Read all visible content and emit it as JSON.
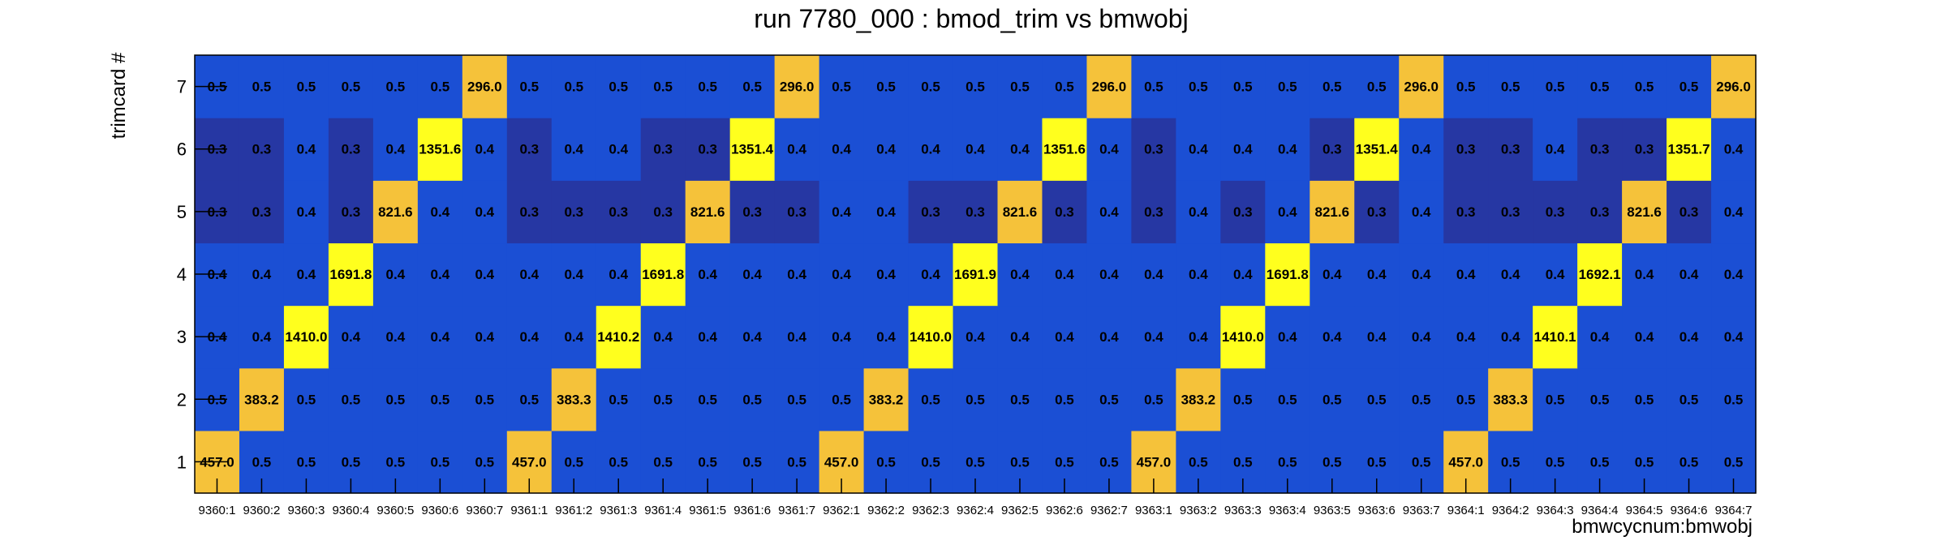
{
  "chart_data": {
    "type": "heatmap",
    "title": "run 7780_000 : bmod_trim vs bmwobj",
    "xlabel": "bmwcycnum:bmwobj",
    "ylabel": "trimcard #",
    "x_categories": [
      "9360:1",
      "9360:2",
      "9360:3",
      "9360:4",
      "9360:5",
      "9360:6",
      "9360:7",
      "9361:1",
      "9361:2",
      "9361:3",
      "9361:4",
      "9361:5",
      "9361:6",
      "9361:7",
      "9362:1",
      "9362:2",
      "9362:3",
      "9362:4",
      "9362:5",
      "9362:6",
      "9362:7",
      "9363:1",
      "9363:2",
      "9363:3",
      "9363:4",
      "9363:5",
      "9363:6",
      "9363:7",
      "9364:1",
      "9364:2",
      "9364:3",
      "9364:4",
      "9364:5",
      "9364:6",
      "9364:7"
    ],
    "y_categories": [
      "1",
      "2",
      "3",
      "4",
      "5",
      "6",
      "7"
    ],
    "rows": {
      "1": [
        "457.0",
        "0.5",
        "0.5",
        "0.5",
        "0.5",
        "0.5",
        "0.5",
        "457.0",
        "0.5",
        "0.5",
        "0.5",
        "0.5",
        "0.5",
        "0.5",
        "457.0",
        "0.5",
        "0.5",
        "0.5",
        "0.5",
        "0.5",
        "0.5",
        "457.0",
        "0.5",
        "0.5",
        "0.5",
        "0.5",
        "0.5",
        "0.5",
        "457.0",
        "0.5",
        "0.5",
        "0.5",
        "0.5",
        "0.5",
        "0.5"
      ],
      "2": [
        "0.5",
        "383.2",
        "0.5",
        "0.5",
        "0.5",
        "0.5",
        "0.5",
        "0.5",
        "383.3",
        "0.5",
        "0.5",
        "0.5",
        "0.5",
        "0.5",
        "0.5",
        "383.2",
        "0.5",
        "0.5",
        "0.5",
        "0.5",
        "0.5",
        "0.5",
        "383.2",
        "0.5",
        "0.5",
        "0.5",
        "0.5",
        "0.5",
        "0.5",
        "383.3",
        "0.5",
        "0.5",
        "0.5",
        "0.5",
        "0.5"
      ],
      "3": [
        "0.4",
        "0.4",
        "1410.0",
        "0.4",
        "0.4",
        "0.4",
        "0.4",
        "0.4",
        "0.4",
        "1410.2",
        "0.4",
        "0.4",
        "0.4",
        "0.4",
        "0.4",
        "0.4",
        "1410.0",
        "0.4",
        "0.4",
        "0.4",
        "0.4",
        "0.4",
        "0.4",
        "1410.0",
        "0.4",
        "0.4",
        "0.4",
        "0.4",
        "0.4",
        "0.4",
        "1410.1",
        "0.4",
        "0.4",
        "0.4",
        "0.4"
      ],
      "4": [
        "0.4",
        "0.4",
        "0.4",
        "1691.8",
        "0.4",
        "0.4",
        "0.4",
        "0.4",
        "0.4",
        "0.4",
        "1691.8",
        "0.4",
        "0.4",
        "0.4",
        "0.4",
        "0.4",
        "0.4",
        "1691.9",
        "0.4",
        "0.4",
        "0.4",
        "0.4",
        "0.4",
        "0.4",
        "1691.8",
        "0.4",
        "0.4",
        "0.4",
        "0.4",
        "0.4",
        "0.4",
        "1692.1",
        "0.4",
        "0.4",
        "0.4"
      ],
      "5": [
        "0.3",
        "0.3",
        "0.4",
        "0.3",
        "821.6",
        "0.4",
        "0.4",
        "0.3",
        "0.3",
        "0.3",
        "0.3",
        "821.6",
        "0.3",
        "0.3",
        "0.4",
        "0.4",
        "0.3",
        "0.3",
        "821.6",
        "0.3",
        "0.4",
        "0.3",
        "0.4",
        "0.3",
        "0.4",
        "821.6",
        "0.3",
        "0.4",
        "0.3",
        "0.3",
        "0.3",
        "0.3",
        "821.6",
        "0.3",
        "0.4"
      ],
      "6": [
        "0.3",
        "0.3",
        "0.4",
        "0.3",
        "0.4",
        "1351.6",
        "0.4",
        "0.3",
        "0.4",
        "0.4",
        "0.3",
        "0.3",
        "1351.4",
        "0.4",
        "0.4",
        "0.4",
        "0.4",
        "0.4",
        "0.4",
        "1351.6",
        "0.4",
        "0.3",
        "0.4",
        "0.4",
        "0.4",
        "0.3",
        "1351.4",
        "0.4",
        "0.3",
        "0.3",
        "0.4",
        "0.3",
        "0.3",
        "1351.7",
        "0.4"
      ],
      "7": [
        "0.5",
        "0.5",
        "0.5",
        "0.5",
        "0.5",
        "0.5",
        "296.0",
        "0.5",
        "0.5",
        "0.5",
        "0.5",
        "0.5",
        "0.5",
        "296.0",
        "0.5",
        "0.5",
        "0.5",
        "0.5",
        "0.5",
        "0.5",
        "296.0",
        "0.5",
        "0.5",
        "0.5",
        "0.5",
        "0.5",
        "0.5",
        "296.0",
        "0.5",
        "0.5",
        "0.5",
        "0.5",
        "0.5",
        "0.5",
        "296.0"
      ]
    },
    "colors": {
      "background_high": "#1b4fd4",
      "background_low": "#2637a3",
      "peak_high": "#ffff1e",
      "peak_low": "#f5c23a"
    }
  }
}
